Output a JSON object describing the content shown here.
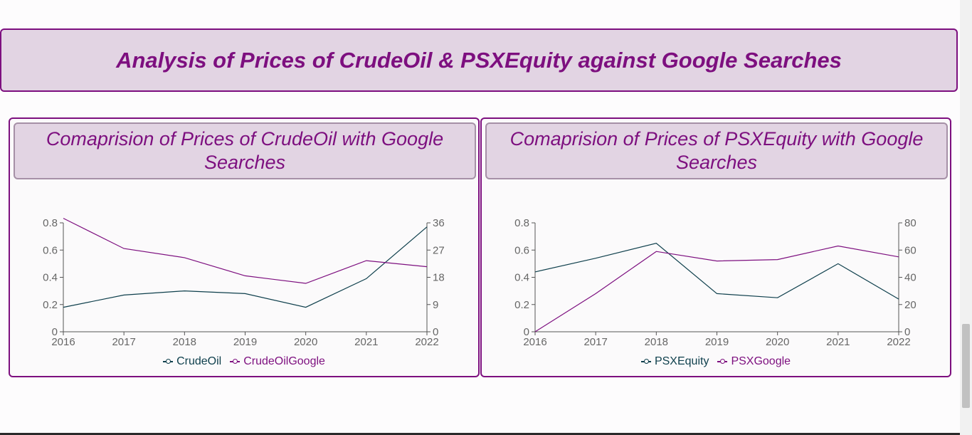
{
  "page": {
    "title": "Analysis of Prices of CrudeOil & PSXEquity against Google Searches"
  },
  "colors": {
    "primary_series": "#0e3f4c",
    "google_series": "#7d0f7f",
    "accent": "#7d0f7f",
    "header_bg": "#e2d4e3"
  },
  "panels": [
    {
      "title": "Comaprision of Prices of CrudeOil with Google Searches",
      "legend": [
        "CrudeOil",
        "CrudeOilGoogle"
      ]
    },
    {
      "title": "Comaprision of Prices of PSXEquity with Google Searches",
      "legend": [
        "PSXEquity",
        "PSXGoogle"
      ]
    }
  ],
  "chart_data": [
    {
      "type": "line",
      "title": "Comaprision of Prices of CrudeOil with Google Searches",
      "x": [
        "2016",
        "2017",
        "2018",
        "2019",
        "2020",
        "2021",
        "2022"
      ],
      "series": [
        {
          "name": "CrudeOil",
          "axis": "left",
          "color": "#0e3f4c",
          "values": [
            0.18,
            0.27,
            0.3,
            0.28,
            0.18,
            0.39,
            0.77
          ]
        },
        {
          "name": "CrudeOilGoogle",
          "axis": "right",
          "color": "#7d0f7f",
          "values": [
            37.5,
            27.5,
            24.5,
            18.5,
            16.0,
            23.5,
            21.5
          ]
        }
      ],
      "y_left": {
        "ticks": [
          0,
          0.2,
          0.4,
          0.6,
          0.8
        ],
        "range": [
          0,
          0.8
        ]
      },
      "y_right": {
        "ticks": [
          0,
          9,
          18,
          27,
          36
        ],
        "range": [
          0,
          36
        ]
      },
      "grid": false,
      "legend_position": "bottom"
    },
    {
      "type": "line",
      "title": "Comaprision of Prices of PSXEquity with Google Searches",
      "x": [
        "2016",
        "2017",
        "2018",
        "2019",
        "2020",
        "2021",
        "2022"
      ],
      "series": [
        {
          "name": "PSXEquity",
          "axis": "left",
          "color": "#0e3f4c",
          "values": [
            0.44,
            0.54,
            0.65,
            0.28,
            0.25,
            0.5,
            0.24
          ]
        },
        {
          "name": "PSXGoogle",
          "axis": "right",
          "color": "#7d0f7f",
          "values": [
            0,
            28,
            59,
            52,
            53,
            63,
            55
          ]
        }
      ],
      "y_left": {
        "ticks": [
          0,
          0.2,
          0.4,
          0.6,
          0.8
        ],
        "range": [
          0,
          0.8
        ]
      },
      "y_right": {
        "ticks": [
          0,
          20,
          40,
          60,
          80
        ],
        "range": [
          0,
          80
        ]
      },
      "grid": false,
      "legend_position": "bottom"
    }
  ]
}
